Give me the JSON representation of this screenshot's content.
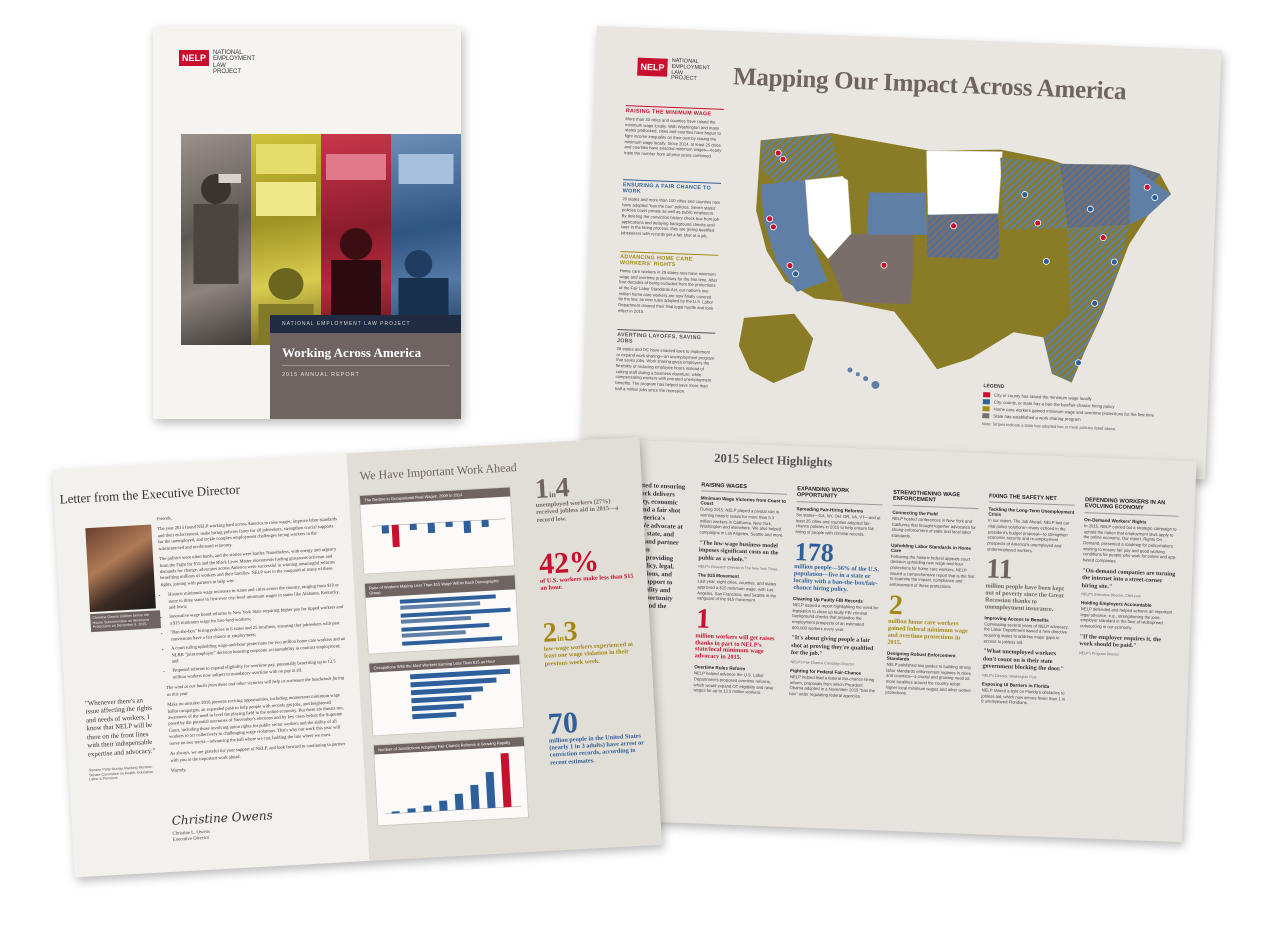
{
  "colors": {
    "red": "#c8102e",
    "blue": "#2e5f9a",
    "gold": "#a38812",
    "taupe": "#6f6461",
    "navy": "#1f2c44"
  },
  "logo": {
    "mark": "NELP",
    "lines": [
      "NATIONAL",
      "EMPLOYMENT",
      "LAW",
      "PROJECT"
    ]
  },
  "cover": {
    "org_band": "NATIONAL EMPLOYMENT LAW PROJECT",
    "title": "Working Across America",
    "subtitle": "2015 ANNUAL REPORT"
  },
  "map": {
    "title": "Mapping Our Impact Across America",
    "sections": [
      {
        "heading": "RAISING THE MINIMUM WAGE",
        "color": "red",
        "text": "More than 33 cities and counties have raised the minimum wage locally. With Washington and many states gridlocked, cities and counties have begun to fight income inequality on their own by raising the minimum wage locally. Since 2014, at least 25 cities and counties have enacted minimum wages—nearly triple the number from all prior years combined."
      },
      {
        "heading": "ENSURING A FAIR CHANCE TO WORK",
        "color": "blue",
        "text": "20 states and more than 100 cities and counties now have adopted \"ban the box\" policies. Seven states' policies cover private as well as public employers. By deleting the conviction history check box from job applications and delaying background checks until later in the hiring process, they are giving qualified jobseekers with records get a fair shot at a job."
      },
      {
        "heading": "ADVANCING HOME CARE WORKERS' RIGHTS",
        "color": "gold",
        "text": "Home care workers in 29 states now have minimum wage and overtime protections for the first time. After four decades of being excluded from the protections of the Fair Labor Standards Act, our nation's two million home care workers are now finally covered by the law, as new rules adopted by the U.S. Labor Department cleared their final legal hurdle and took effect in 2015."
      },
      {
        "heading": "AVERTING LAYOFFS, SAVING JOBS",
        "color": "grey",
        "text": "28 states and DC have enacted laws to implement or expand work sharing—an unemployment program that saves jobs. Work sharing gives employers the flexibility of reducing employee hours instead of cutting staff during a business downturn, while compensating workers with prorated unemployment benefits. The program has helped save more than half a million jobs since the recession."
      }
    ],
    "legend": {
      "title": "LEGEND",
      "items": [
        {
          "color": "#c8102e",
          "label": "City or county has raised the minimum wage locally"
        },
        {
          "color": "#2e5f9a",
          "label": "City, county, or state has a ban-the-box/fair-chance hiring policy"
        },
        {
          "color": "#a38812",
          "label": "Home care workers gained minimum wage and overtime protections for the first time"
        },
        {
          "color": "#7a6e6a",
          "label": "State has established a work sharing program"
        }
      ],
      "note": "Note: Stripes indicate a state has adopted two or more policies listed above."
    }
  },
  "highlights": {
    "title": "2015 Select Highlights",
    "intro": "…committed to ensuring that all work delivers opportunity, economic security, and a fair shot to all of America's workers. We advocate at the federal, state, and local levels and partner with allies on campaigns, providing research, policy, legal, communications, and organizing support to build job quality and economic opportunity for workers and the unemployed.",
    "columns": [
      {
        "heading": "RAISING WAGES",
        "sub": "Minimum Wage Victories from Coast to Coast",
        "text": "During 2015, NELP played a pivotal role in winning historic raises for more than 5.3 million workers in California, New York, Washington and elsewhere. We also helped campaigns in Los Angeles, Seattle and more.",
        "quote": "\"The low-wage business model imposes significant costs on the public as a whole.\"",
        "attr": "NELP's Research Director in The New York Times",
        "sub2": "The $15 Movement",
        "text2": "Last year, eight cities, counties, and states approved a $15 minimum wage, with Los Angeles, San Francisco, and Seattle in the vanguard of the $15 movement.",
        "big": "1",
        "big_cap": "million workers will get raises thanks in part to NELP's state/local minimum wage advocacy in 2015.",
        "big_color": "red",
        "sub3": "Overtime Rules Reform",
        "text3": "NELP helped advance the U.S. Labor Department's proposed overtime reforms, which would expand OT eligibility and raise wages for up to 12.5 million workers."
      },
      {
        "heading": "EXPANDING WORK OPPORTUNITY",
        "sub": "Spreading Fair-Hiring Reforms",
        "text": "Six states—GA, NY, OH, OR, VA, VT—and at least 25 cities and counties adopted fair-chance policies in 2015 to help ensure fair hiring of people with criminal records.",
        "big": "178",
        "big_cap": "million people—56% of the U.S. population—live in a state or locality with a ban-the-box/fair-chance hiring policy.",
        "big_color": "blue",
        "sub2": "Cleaning Up Faulty FBI Records",
        "text2": "NELP issued a report highlighting the need for legislation to clean up faulty FBI criminal background checks that prejudice the employment prospects of an estimated 600,000 workers every year.",
        "quote": "\"It's about giving people a fair shot at proving they're qualified for the job.\"",
        "attr": "NELP's Fair-Chance Campaign Director",
        "sub3": "Fighting for Federal Fair-Chance",
        "text3": "NELP helped lead a federal fair-chance hiring reform, proposals from which President Obama adopted in a November 2015 \"ban the box\" order regulating federal agencies."
      },
      {
        "heading": "STRENGTHENING WAGE ENFORCEMENT",
        "sub": "Connecting the Field",
        "text": "NELP hosted conferences in New York and California that brought together advocates for strong enforcement of state and local labor standards.",
        "sub2": "Upholding Labor Standards in Home Care",
        "text2": "Following the historic federal appeals court decision upholding new wage-and-hour protections for home care workers, NELP issued a comprehensive report that is the first to examine the impact, compliance and enforcement of these protections.",
        "big": "2",
        "big_cap": "million home care workers gained federal minimum wage and overtime protections in 2015.",
        "big_color": "gold",
        "sub3": "Designing Robust Enforcement Standards",
        "text3": "NELP published two guides to building strong labor standards enforcement regimes in cities and counties—a crucial and growing need as more localities around the country adopt higher local minimum wages and other worker protections."
      },
      {
        "heading": "FIXING THE SAFETY NET",
        "sub": "Tackling the Long-Term Unemployment Crisis",
        "text": "In our report, The Job Ahead, NELP laid out vital policy solutions—many echoed in the president's budget proposal—to strengthen economic security and re-employment prospects of America's unemployed and underemployed workers.",
        "big": "11",
        "big_cap": "million people have been kept out of poverty since the Great Recession thanks to unemployment insurance.",
        "big_color": "taupe",
        "sub2": "Improving Access to Benefits",
        "text2": "Culminating several years of NELP advocacy, the Labor Department issued a new directive requiring states to address major gaps in access to jobless aid.",
        "quote": "\"What unemployed workers don't count on is their state government blocking the door.\"",
        "attr": "NELP's Director, Washington Post",
        "sub3": "Exposing UI Barriers in Florida",
        "text3": "NELP shined a light on Florida's obstacles to jobless aid, which now serves fewer than 1 in 8 unemployed Floridians."
      },
      {
        "heading": "DEFENDING WORKERS IN AN EVOLVING ECONOMY",
        "sub": "On-Demand Workers' Rights",
        "text": "In 2015, NELP carried out a strategic campaign to uphold the notion that employment laws apply to the online economy. Our report, Rights On Demand, presented a roadmap for policymakers wishing to ensure fair pay and good working conditions for people who work for online and app-based companies.",
        "quote": "\"On-demand companies are turning the internet into a street-corner hiring site.\"",
        "attr": "NELP's Executive Director, CNN.com",
        "sub2": "Holding Employers Accountable",
        "text2": "NELP defended and helped achieve an important legal advance, e.g., strengthening the joint-employer standard in the face of widespread outsourcing in our economy.",
        "quote2": "\"If the employer requires it, the work should be paid.\"",
        "attr2": "NELP's Program Director"
      }
    ]
  },
  "letter": {
    "title": "Letter from the Executive Director",
    "portrait_caption": "Christine Owens testifies before the House Subcommittee on Workforce Protections on December 8, 2015.",
    "greeting": "Friends,",
    "paragraphs": [
      "The year 2015 found NELP working hard across America to raise wages, improve labor standards and their enforcement, make hiring policies fairer for all jobseekers, strengthen crucial supports for the unemployed, and tackle complex employment challenges facing workers in the subcontracted and on-demand economy.",
      "The politics were often harsh, and the stories were harder. Nonetheless, with energy and urgency from the Fight for $15 and the Black Lives Matter movements fueling grassroots activism and demands for change, advocates across America were successful in winning meaningful reforms benefiting millions of workers and their families. NELP was in the vanguard of many of these fights, joining with partners to help win:"
    ],
    "bullets": [
      "Historic minimum wage increases in states and cities across the country, ranging from $10 or more in three states to first-ever city-level minimum wages in states like Alabama, Kentucky, and Iowa;",
      "Innovative wage board reforms in New York State requiring higher pay for tipped workers and a $15 minimum wage for fast-food workers;",
      "\"Ban-the-box\" hiring policies in 6 states and 25 localities, ensuring that jobseekers with past convictions have a fair chance at employment;",
      "A court ruling upholding wage-and-hour protections for two million home care workers and an NLRB \"joint employer\" decision boosting corporate accountability in contract employment; and",
      "Proposed reforms to expand eligibility for overtime pay, potentially benefiting up to 12.5 million workers now subject to mandatory overtime with no pay at all."
    ],
    "closing": [
      "The wind at our backs from these and other victories will help us surmount the headwinds facing us this year.",
      "Make no mistake: 2016 presents exciting opportunities, including momentous minimum wage ballot campaigns, an expanded push to help people with records get jobs, and heightened awareness of the need to level the playing field in the online economy. But there are threats too, posed by the potential outcomes of November's elections and by key cases before the Supreme Court, including those involving union rights for public sector workers and the ability of all workers to act collectively in challenging wage violations. That's why our work this year will move on two tracks—advancing the ball where we can, holding the line where we must.",
      "As always, we are grateful for your support of NELP, and look forward to continuing to partner with you in the important work ahead.",
      "Warmly,"
    ],
    "pull_quote": "\"Whenever there's an issue affecting the rights and needs of workers, I know that NELP will be there on the front lines with their indispensable expertise and advocacy.\"",
    "pull_attr": "Senator Patty Murray, Ranking Member, Senate Committee on Health, Education, Labor & Pensions",
    "signature": "Christine Owens",
    "signer": [
      "Christine L. Owens",
      "Executive Director"
    ]
  },
  "work_ahead": {
    "title": "We Have Important Work Ahead",
    "charts": [
      {
        "title": "The Decline in Occupational Real Wages, 2009 to 2014"
      },
      {
        "title": "Ratio of Workers Making Less Than $15 Wage Within Each Demographic Group"
      },
      {
        "title": "Occupations With the Most Workers Earning Less Than $15 an Hour"
      },
      {
        "title": "Number of Jurisdictions Adopting Fair-Chance Reforms is Growing Rapidly"
      }
    ],
    "stats": [
      {
        "num": "1",
        "fraction": "in",
        "num2": "4",
        "text": "unemployed workers (27%) received jobless aid in 2015—a record low.",
        "color": "taupe"
      },
      {
        "num": "42%",
        "text": "of U.S. workers make less than $15 an hour.",
        "color": "red"
      },
      {
        "num": "2",
        "fraction": "in",
        "num2": "3",
        "text": "low-wage workers experienced at least one wage violation in their previous work week.",
        "color": "gold"
      },
      {
        "num": "70",
        "text": "million people in the United States (nearly 1 in 3 adults) have arrest or conviction records, according to recent estimates.",
        "color": "blue"
      }
    ]
  }
}
